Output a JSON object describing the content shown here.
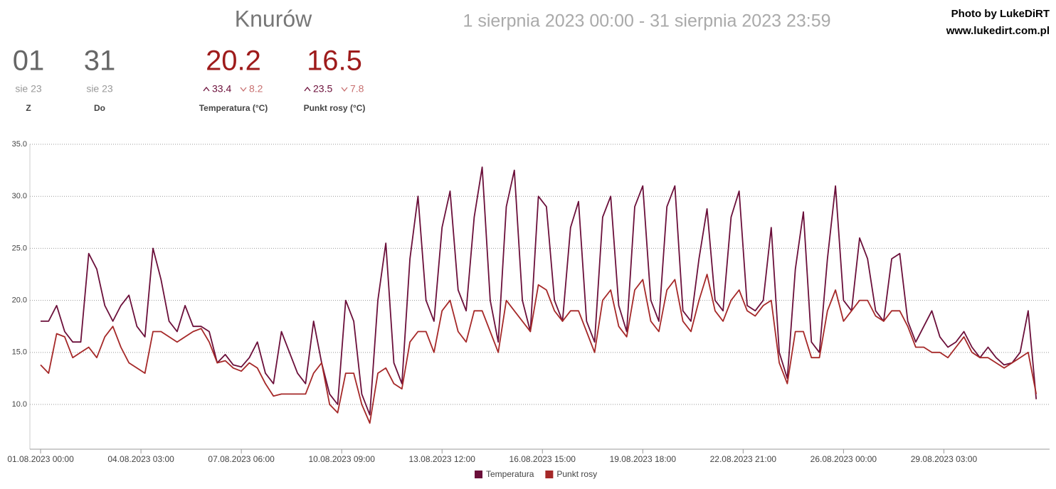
{
  "header": {
    "location": "Knurów",
    "period": "1 sierpnia 2023 00:00 - 31 sierpnia 2023 23:59",
    "credit": [
      "Photo by LukeDiRT",
      "www.lukedirt.com.pl"
    ]
  },
  "stats": [
    {
      "value": "01",
      "sub": "sie 23",
      "label": "Z"
    },
    {
      "value": "31",
      "sub": "sie 23",
      "label": "Do"
    },
    {
      "value": "20.2",
      "max": "33.4",
      "min": "8.2",
      "label": "Temperatura (°C)"
    },
    {
      "value": "16.5",
      "max": "23.5",
      "min": "7.8",
      "label": "Punkt rosy (°C)"
    }
  ],
  "chart_data": {
    "type": "line",
    "x": [
      0,
      6,
      12,
      18,
      24,
      30,
      36,
      42,
      48,
      54,
      60,
      66,
      72,
      78,
      84,
      90,
      96,
      102,
      108,
      114,
      120,
      126,
      132,
      138,
      144,
      150,
      156,
      162,
      168,
      174,
      180,
      186,
      192,
      198,
      204,
      210,
      216,
      222,
      228,
      234,
      240,
      246,
      252,
      258,
      264,
      270,
      276,
      282,
      288,
      294,
      300,
      306,
      312,
      318,
      324,
      330,
      336,
      342,
      348,
      354,
      360,
      366,
      372,
      378,
      384,
      390,
      396,
      402,
      408,
      414,
      420,
      426,
      432,
      438,
      444,
      450,
      456,
      462,
      468,
      474,
      480,
      486,
      492,
      498,
      504,
      510,
      516,
      522,
      528,
      534,
      540,
      546,
      552,
      558,
      564,
      570,
      576,
      582,
      588,
      594,
      600,
      606,
      612,
      618,
      624,
      630,
      636,
      642,
      648,
      654,
      660,
      666,
      672,
      678,
      684,
      690,
      696,
      702,
      708,
      714,
      720,
      726,
      732,
      738,
      744
    ],
    "series": [
      {
        "name": "Temperatura",
        "color": "#6b0f3a",
        "values": [
          18,
          18,
          19.5,
          17,
          16,
          16,
          24.5,
          23,
          19.5,
          18,
          19.5,
          20.5,
          17.5,
          16.5,
          25,
          22,
          18,
          17,
          19.5,
          17.5,
          17.5,
          17,
          14,
          14.8,
          13.8,
          13.6,
          14.5,
          16,
          13,
          12,
          17,
          15,
          13,
          12,
          18,
          14,
          11,
          10,
          20,
          18,
          11,
          9,
          20,
          25.5,
          14,
          12,
          24,
          30,
          20,
          18,
          27,
          30.5,
          21,
          19,
          28,
          32.8,
          20,
          16,
          29,
          32.5,
          20,
          17,
          30,
          29,
          20,
          18,
          27,
          29.5,
          18,
          16,
          28,
          30,
          19.5,
          17,
          29,
          31,
          20,
          18,
          29,
          31,
          19,
          18,
          24,
          28.8,
          20,
          19,
          28,
          30.5,
          19.5,
          19,
          20,
          27,
          15,
          12.5,
          23,
          28.5,
          16,
          15,
          24,
          31,
          20,
          19,
          26,
          24,
          19,
          18,
          24,
          24.5,
          18,
          16,
          17.5,
          19,
          16.5,
          15.5,
          16,
          17,
          15.5,
          14.5,
          15.5,
          14.5,
          13.8,
          14,
          15,
          19,
          10.5
        ]
      },
      {
        "name": "Punkt rosy",
        "color": "#a52828",
        "values": [
          13.8,
          13,
          16.8,
          16.5,
          14.5,
          15,
          15.5,
          14.5,
          16.5,
          17.5,
          15.5,
          14,
          13.5,
          13,
          17,
          17,
          16.5,
          16,
          16.5,
          17,
          17.3,
          16,
          14,
          14.2,
          13.5,
          13.2,
          14,
          13.5,
          12,
          10.8,
          11,
          11,
          11,
          11,
          13,
          14,
          10,
          9.2,
          13,
          13,
          10,
          8.2,
          13,
          13.5,
          12,
          11.5,
          16,
          17,
          17,
          15,
          19,
          20,
          17,
          16,
          19,
          19,
          17,
          15,
          20,
          19,
          18,
          17,
          21.5,
          21,
          19,
          18,
          19,
          19,
          17,
          15,
          20,
          21,
          17.5,
          16.5,
          21,
          22,
          18,
          17,
          21,
          22,
          18,
          17,
          20,
          22.5,
          19,
          18,
          20,
          21,
          19,
          18.5,
          19.5,
          20,
          14,
          12,
          17,
          17,
          14.5,
          14.5,
          19,
          21,
          18,
          19,
          20,
          20,
          18.5,
          18,
          19,
          19,
          17.5,
          15.5,
          15.5,
          15,
          15,
          14.5,
          15.5,
          16.5,
          15,
          14.5,
          14.5,
          14,
          13.5,
          14,
          14.5,
          15,
          11
        ]
      }
    ],
    "xlim": [
      -8,
      754
    ],
    "xticks": [
      {
        "value": 0,
        "label": "01.08.2023 00:00"
      },
      {
        "value": 75,
        "label": "04.08.2023 03:00"
      },
      {
        "value": 150,
        "label": "07.08.2023 06:00"
      },
      {
        "value": 225,
        "label": "10.08.2023 09:00"
      },
      {
        "value": 300,
        "label": "13.08.2023 12:00"
      },
      {
        "value": 375,
        "label": "16.08.2023 15:00"
      },
      {
        "value": 450,
        "label": "19.08.2023 18:00"
      },
      {
        "value": 525,
        "label": "22.08.2023 21:00"
      },
      {
        "value": 600,
        "label": "26.08.2023 00:00"
      },
      {
        "value": 675,
        "label": "29.08.2023 03:00"
      }
    ],
    "ylim": [
      5.7,
      35
    ],
    "yticks": [
      {
        "value": 10,
        "label": "10.0"
      },
      {
        "value": 15,
        "label": "15.0"
      },
      {
        "value": 20,
        "label": "20.0"
      },
      {
        "value": 25,
        "label": "25.0"
      },
      {
        "value": 30,
        "label": "30.0"
      },
      {
        "value": 35,
        "label": "35.0"
      }
    ],
    "grid": true
  }
}
